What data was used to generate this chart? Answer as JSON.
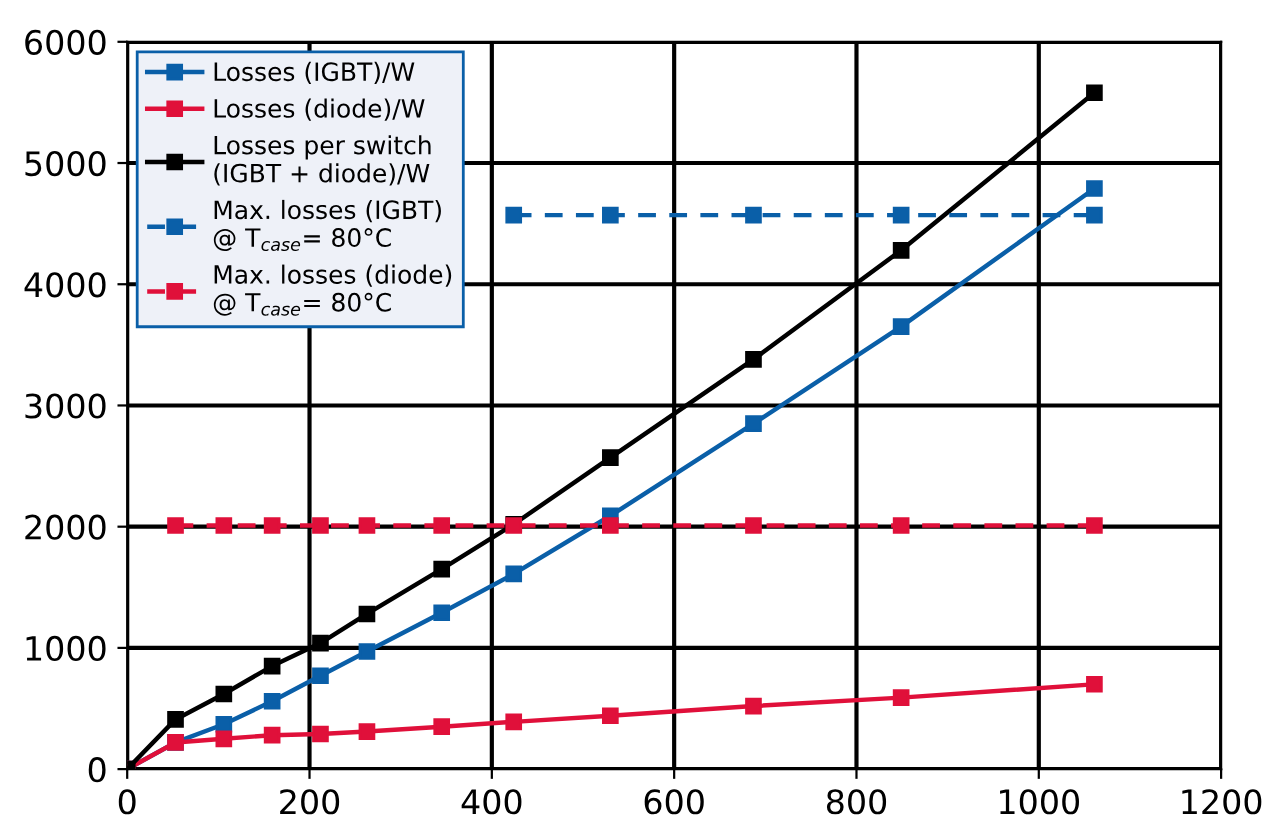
{
  "chart_data": {
    "type": "line",
    "x": [
      0,
      53,
      106,
      159,
      212,
      263,
      345,
      424,
      530,
      687,
      849,
      1061
    ],
    "series": [
      {
        "name": "Losses (IGBT)/W",
        "color": "#0a5fa8",
        "values": [
          0,
          220,
          370,
          560,
          770,
          970,
          1290,
          1610,
          2090,
          2850,
          3650,
          4790
        ]
      },
      {
        "name": "Losses (diode)/W",
        "color": "#e0103a",
        "values": [
          0,
          220,
          250,
          280,
          290,
          310,
          350,
          390,
          440,
          520,
          590,
          700
        ]
      },
      {
        "name": "Losses per switch\n(IGBT + diode)/W",
        "color": "#000000",
        "values": [
          0,
          410,
          620,
          850,
          1040,
          1280,
          1650,
          2020,
          2570,
          3380,
          4280,
          5580
        ]
      },
      {
        "name": "Max. losses (IGBT)\n@ T$_{case}$= 80°C",
        "color": "#0a5fa8",
        "line_style": "dashed",
        "values": [
          null,
          null,
          null,
          null,
          null,
          null,
          null,
          4570,
          4570,
          4570,
          4570,
          4570
        ]
      },
      {
        "name": "Max. losses (diode)\n@ T$_{case}$= 80°C",
        "color": "#e0103a",
        "line_style": "dashed",
        "values": [
          null,
          2010,
          2010,
          2010,
          2010,
          2010,
          2010,
          2010,
          2010,
          2010,
          2010,
          2010
        ]
      }
    ],
    "xlim": [
      0,
      1200
    ],
    "xticks": [
      0,
      200,
      400,
      600,
      800,
      1000,
      1200
    ],
    "ylim": [
      0,
      6000
    ],
    "yticks": [
      0,
      1000,
      2000,
      3000,
      4000,
      5000,
      6000
    ],
    "grid": true,
    "legend": "top left",
    "marker": "square",
    "line_style": "solid"
  }
}
